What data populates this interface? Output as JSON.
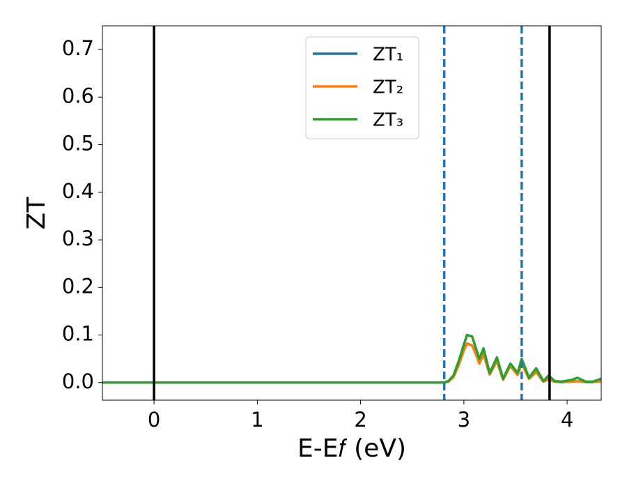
{
  "chart_data": {
    "type": "line",
    "xlabel": "E-E𝑓 (eV)",
    "ylabel": "ZT",
    "x": [
      -0.5,
      2.8,
      2.85,
      2.9,
      2.95,
      3.0,
      3.03,
      3.08,
      3.12,
      3.15,
      3.19,
      3.25,
      3.32,
      3.38,
      3.45,
      3.52,
      3.56,
      3.63,
      3.7,
      3.77,
      3.82,
      3.88,
      3.95,
      4.05,
      4.1,
      4.18,
      4.25,
      4.33
    ],
    "series": [
      {
        "name": "ZT₁",
        "color": "#1f77b4",
        "values": [
          0,
          0,
          0.002,
          0.012,
          0.037,
          0.068,
          0.082,
          0.078,
          0.058,
          0.04,
          0.06,
          0.017,
          0.045,
          0.006,
          0.035,
          0.016,
          0.048,
          0.008,
          0.022,
          0.002,
          0.01,
          0.002,
          0.001,
          0.002,
          0.003,
          0.001,
          0.001,
          0.003
        ]
      },
      {
        "name": "ZT₂",
        "color": "#ff7f0e",
        "values": [
          0,
          0,
          0.002,
          0.012,
          0.037,
          0.068,
          0.082,
          0.078,
          0.058,
          0.04,
          0.06,
          0.017,
          0.045,
          0.006,
          0.035,
          0.016,
          0.04,
          0.008,
          0.022,
          0.002,
          0.006,
          0.002,
          0.001,
          0.002,
          0.003,
          0.001,
          0.001,
          0.003
        ]
      },
      {
        "name": "ZT₃",
        "color": "#2ca02c",
        "values": [
          0,
          0,
          0.003,
          0.015,
          0.045,
          0.08,
          0.1,
          0.097,
          0.07,
          0.05,
          0.072,
          0.02,
          0.053,
          0.008,
          0.04,
          0.02,
          0.05,
          0.01,
          0.03,
          0.003,
          0.015,
          0.003,
          0.002,
          0.006,
          0.01,
          0.002,
          0.002,
          0.008
        ]
      }
    ],
    "vlines": [
      {
        "x": 0,
        "color": "#000000",
        "style": "solid"
      },
      {
        "x": 3.83,
        "color": "#000000",
        "style": "solid"
      },
      {
        "x": 2.81,
        "color": "#1f77b4",
        "style": "dashed"
      },
      {
        "x": 3.56,
        "color": "#1f77b4",
        "style": "dashed"
      }
    ],
    "xlim": [
      -0.5,
      4.33
    ],
    "ylim": [
      -0.037,
      0.75
    ],
    "xticks": [
      0,
      1,
      2,
      3,
      4
    ],
    "yticks": [
      {
        "value": 0,
        "label": "0.0"
      },
      0.1,
      0.2,
      0.3,
      0.4,
      0.5,
      0.6,
      0.7
    ],
    "grid": false,
    "legend": "upper center"
  }
}
